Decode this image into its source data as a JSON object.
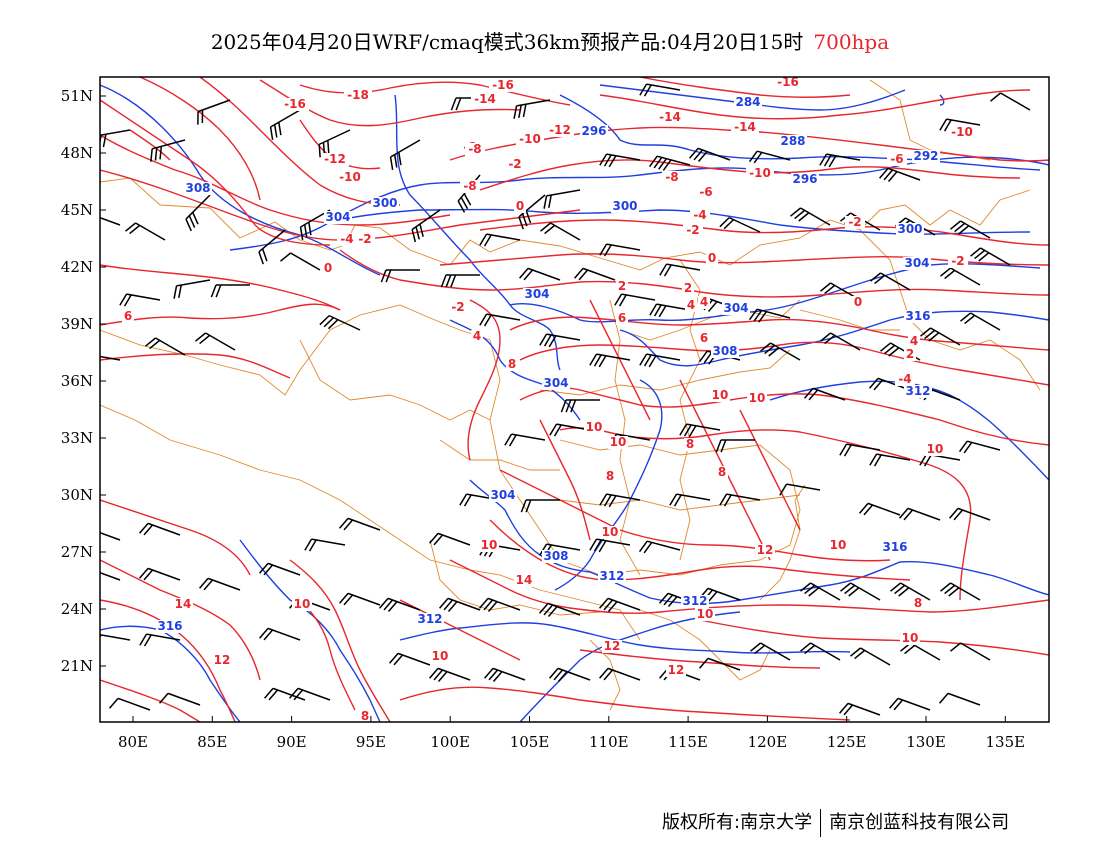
{
  "title": {
    "main": "2025年04月20日WRF/cmaq模式36km预报产品:04月20日15时",
    "level": "700hpa",
    "level_color": "#e8262d"
  },
  "map": {
    "lon_labels": [
      "80E",
      "85E",
      "90E",
      "95E",
      "100E",
      "105E",
      "110E",
      "115E",
      "120E",
      "125E",
      "130E",
      "135E"
    ],
    "lat_labels": [
      "51N",
      "48N",
      "45N",
      "42N",
      "39N",
      "36N",
      "33N",
      "30N",
      "27N",
      "24N",
      "21N"
    ],
    "colors": {
      "temperature": "#e8262d",
      "geopotential": "#1f3fe0",
      "boundary": "#e08a2c",
      "wind": "#000000"
    },
    "temperature_labels": [
      "-16",
      "-18",
      "-14",
      "-16",
      "-14",
      "-14",
      "-16",
      "-10",
      "-8",
      "-12",
      "-10",
      "-12",
      "-10",
      "-8",
      "-2",
      "-8",
      "-10",
      "-8",
      "-6",
      "-6",
      "-2",
      "0",
      "-4",
      "-2",
      "-4",
      "-2",
      "0",
      "-2",
      "0",
      "2",
      "2",
      "4",
      "-2",
      "4",
      "0",
      "6",
      "4",
      "2",
      "4",
      "8",
      "-4",
      "6",
      "8",
      "10",
      "10",
      "10",
      "8",
      "10",
      "8",
      "10",
      "10",
      "12",
      "14",
      "14",
      "10",
      "12",
      "10",
      "12",
      "10",
      "12",
      "10",
      "10",
      "8",
      "8",
      "10",
      "6"
    ],
    "geopotential_labels": [
      "308",
      "304",
      "300",
      "304",
      "300",
      "296",
      "288",
      "296",
      "292",
      "284",
      "300",
      "304",
      "304",
      "308",
      "304",
      "312",
      "304",
      "308",
      "312",
      "316",
      "312",
      "316",
      "312",
      "316"
    ],
    "credit_left": "版权所有:南京大学",
    "credit_right": "南京创蓝科技有限公司"
  }
}
